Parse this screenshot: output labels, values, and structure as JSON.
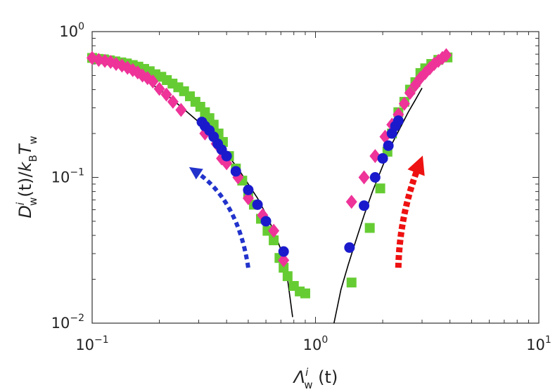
{
  "chart_data": {
    "type": "scatter",
    "title": "",
    "xlabel_parts": {
      "base": "Λ",
      "sup": "i",
      "sub": "w",
      "arg": " (t)"
    },
    "ylabel_parts": {
      "D": "D",
      "sup": "i",
      "sub": "w",
      "rest": "(t)/",
      "k": "k",
      "ksub": "B",
      "T": "T",
      "Tsub": "w"
    },
    "x_scale": "log",
    "y_scale": "log",
    "xlim": [
      0.1,
      10
    ],
    "ylim": [
      0.01,
      1
    ],
    "x_ticks": [
      {
        "value": 0.1,
        "base": "10",
        "exp": "−1"
      },
      {
        "value": 1,
        "base": "10",
        "exp": "0"
      },
      {
        "value": 10,
        "base": "10",
        "exp": "1"
      }
    ],
    "y_ticks": [
      {
        "value": 0.01,
        "base": "10",
        "exp": "−2"
      },
      {
        "value": 0.1,
        "base": "10",
        "exp": "−1"
      },
      {
        "value": 1,
        "base": "10",
        "exp": "0"
      }
    ],
    "grid": false,
    "legend": "none",
    "series": [
      {
        "marker": "square",
        "color": "#66cc33",
        "points": [
          [
            0.1,
            0.66
          ],
          [
            0.107,
            0.65
          ],
          [
            0.113,
            0.645
          ],
          [
            0.12,
            0.635
          ],
          [
            0.127,
            0.625
          ],
          [
            0.135,
            0.615
          ],
          [
            0.143,
            0.605
          ],
          [
            0.152,
            0.59
          ],
          [
            0.161,
            0.575
          ],
          [
            0.171,
            0.555
          ],
          [
            0.181,
            0.535
          ],
          [
            0.192,
            0.51
          ],
          [
            0.204,
            0.49
          ],
          [
            0.216,
            0.465
          ],
          [
            0.229,
            0.44
          ],
          [
            0.243,
            0.415
          ],
          [
            0.258,
            0.39
          ],
          [
            0.274,
            0.36
          ],
          [
            0.29,
            0.33
          ],
          [
            0.305,
            0.305
          ],
          [
            0.32,
            0.28
          ],
          [
            0.335,
            0.255
          ],
          [
            0.35,
            0.23
          ],
          [
            0.368,
            0.2
          ],
          [
            0.385,
            0.175
          ],
          [
            0.41,
            0.14
          ],
          [
            0.44,
            0.115
          ],
          [
            0.47,
            0.095
          ],
          [
            0.5,
            0.078
          ],
          [
            0.53,
            0.065
          ],
          [
            0.57,
            0.052
          ],
          [
            0.61,
            0.043
          ],
          [
            0.65,
            0.037
          ],
          [
            0.69,
            0.028
          ],
          [
            0.72,
            0.024
          ],
          [
            0.75,
            0.021
          ],
          [
            0.8,
            0.018
          ],
          [
            0.85,
            0.0165
          ],
          [
            0.9,
            0.016
          ],
          [
            1.45,
            0.019
          ],
          [
            1.75,
            0.045
          ],
          [
            1.95,
            0.084
          ],
          [
            2.1,
            0.15
          ],
          [
            2.2,
            0.2
          ],
          [
            2.35,
            0.28
          ],
          [
            2.5,
            0.33
          ],
          [
            2.65,
            0.4
          ],
          [
            2.8,
            0.45
          ],
          [
            2.95,
            0.52
          ],
          [
            3.1,
            0.56
          ],
          [
            3.3,
            0.6
          ],
          [
            3.55,
            0.64
          ],
          [
            3.9,
            0.665
          ]
        ]
      },
      {
        "marker": "diamond",
        "color": "#ee3399",
        "points": [
          [
            0.1,
            0.66
          ],
          [
            0.107,
            0.64
          ],
          [
            0.114,
            0.63
          ],
          [
            0.121,
            0.62
          ],
          [
            0.128,
            0.6
          ],
          [
            0.136,
            0.585
          ],
          [
            0.144,
            0.565
          ],
          [
            0.152,
            0.545
          ],
          [
            0.16,
            0.525
          ],
          [
            0.168,
            0.5
          ],
          [
            0.177,
            0.48
          ],
          [
            0.187,
            0.455
          ],
          [
            0.2,
            0.405
          ],
          [
            0.215,
            0.37
          ],
          [
            0.23,
            0.33
          ],
          [
            0.25,
            0.29
          ],
          [
            0.32,
            0.2
          ],
          [
            0.36,
            0.17
          ],
          [
            0.38,
            0.135
          ],
          [
            0.4,
            0.125
          ],
          [
            0.45,
            0.1
          ],
          [
            0.5,
            0.072
          ],
          [
            0.58,
            0.055
          ],
          [
            0.65,
            0.043
          ],
          [
            0.72,
            0.027
          ],
          [
            1.45,
            0.068
          ],
          [
            1.65,
            0.1
          ],
          [
            1.85,
            0.14
          ],
          [
            2.05,
            0.19
          ],
          [
            2.2,
            0.23
          ],
          [
            2.35,
            0.27
          ],
          [
            2.5,
            0.32
          ],
          [
            2.65,
            0.38
          ],
          [
            2.8,
            0.43
          ],
          [
            2.95,
            0.48
          ],
          [
            3.1,
            0.52
          ],
          [
            3.25,
            0.56
          ],
          [
            3.4,
            0.6
          ],
          [
            3.55,
            0.63
          ],
          [
            3.7,
            0.66
          ],
          [
            3.85,
            0.69
          ]
        ]
      },
      {
        "marker": "circle",
        "color": "#1a1acc",
        "points": [
          [
            0.31,
            0.24
          ],
          [
            0.32,
            0.225
          ],
          [
            0.335,
            0.21
          ],
          [
            0.35,
            0.19
          ],
          [
            0.365,
            0.17
          ],
          [
            0.38,
            0.155
          ],
          [
            0.4,
            0.14
          ],
          [
            0.44,
            0.11
          ],
          [
            0.5,
            0.082
          ],
          [
            0.55,
            0.065
          ],
          [
            0.6,
            0.05
          ],
          [
            0.72,
            0.031
          ],
          [
            1.42,
            0.033
          ],
          [
            1.65,
            0.064
          ],
          [
            1.85,
            0.1
          ],
          [
            2.0,
            0.135
          ],
          [
            2.12,
            0.165
          ],
          [
            2.2,
            0.2
          ],
          [
            2.28,
            0.225
          ],
          [
            2.35,
            0.245
          ]
        ]
      }
    ],
    "curves": [
      {
        "name": "left-branch",
        "color": "#000000",
        "points": [
          [
            0.1,
            0.68
          ],
          [
            0.12,
            0.62
          ],
          [
            0.15,
            0.53
          ],
          [
            0.18,
            0.45
          ],
          [
            0.22,
            0.36
          ],
          [
            0.26,
            0.29
          ],
          [
            0.3,
            0.24
          ],
          [
            0.35,
            0.185
          ],
          [
            0.4,
            0.145
          ],
          [
            0.45,
            0.115
          ],
          [
            0.5,
            0.09
          ],
          [
            0.55,
            0.072
          ],
          [
            0.6,
            0.056
          ],
          [
            0.65,
            0.043
          ],
          [
            0.7,
            0.032
          ],
          [
            0.75,
            0.02
          ],
          [
            0.79,
            0.011
          ]
        ]
      },
      {
        "name": "right-branch",
        "color": "#000000",
        "points": [
          [
            1.21,
            0.01
          ],
          [
            1.3,
            0.017
          ],
          [
            1.4,
            0.025
          ],
          [
            1.5,
            0.035
          ],
          [
            1.65,
            0.055
          ],
          [
            1.8,
            0.08
          ],
          [
            2.0,
            0.12
          ],
          [
            2.2,
            0.17
          ],
          [
            2.4,
            0.22
          ],
          [
            2.6,
            0.28
          ],
          [
            2.8,
            0.34
          ],
          [
            3.0,
            0.41
          ]
        ]
      }
    ],
    "arrows": [
      {
        "name": "blue-arrow",
        "color": "#2233cc",
        "from": [
          0.5,
          0.024
        ],
        "ctrl": [
          0.45,
          0.07
        ],
        "to": [
          0.29,
          0.11
        ]
      },
      {
        "name": "red-arrow",
        "color": "#ee1111",
        "from": [
          2.35,
          0.024
        ],
        "ctrl": [
          2.38,
          0.055
        ],
        "to": [
          2.9,
          0.12
        ]
      }
    ]
  }
}
